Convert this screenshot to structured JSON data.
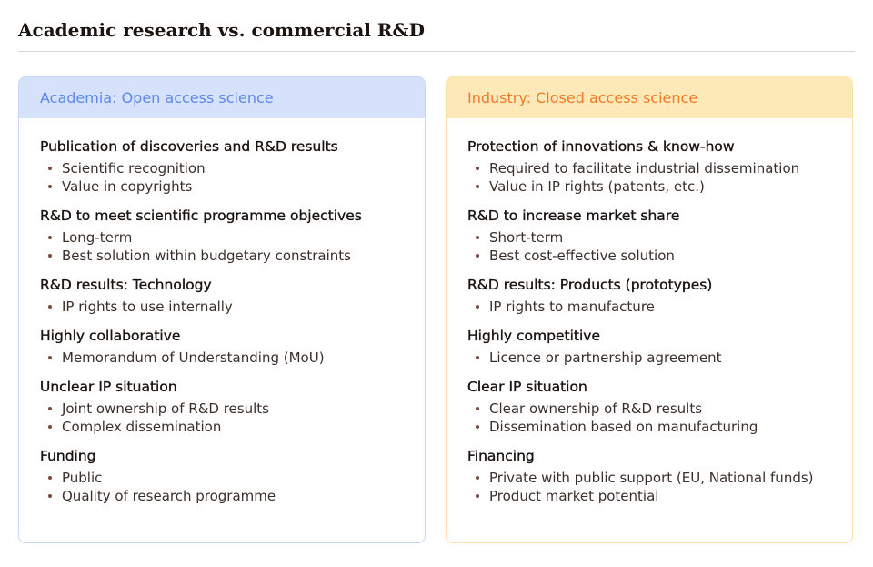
{
  "title": "Academic research vs. commercial R&D",
  "colors": {
    "left_header_bg": "#d6e2fc",
    "left_header_text": "#5d87ea",
    "left_border": "#c6d6f8",
    "right_header_bg": "#fde9b8",
    "right_header_text": "#f2792a",
    "right_border": "#fbe2aa"
  },
  "left": {
    "header": "Academia: Open access science",
    "sections": [
      {
        "title": "Publication of discoveries and R&D results",
        "items": [
          "Scientific recognition",
          "Value in copyrights"
        ]
      },
      {
        "title": "R&D to meet scientific programme objectives",
        "items": [
          "Long-term",
          "Best solution within budgetary constraints"
        ]
      },
      {
        "title": "R&D results: Technology",
        "items": [
          "IP rights to use internally"
        ]
      },
      {
        "title": "Highly collaborative",
        "items": [
          "Memorandum of Understanding (MoU)"
        ]
      },
      {
        "title": "Unclear IP situation",
        "items": [
          "Joint ownership of R&D results",
          "Complex dissemination"
        ]
      },
      {
        "title": "Funding",
        "items": [
          "Public",
          "Quality of research programme"
        ]
      }
    ]
  },
  "right": {
    "header": "Industry: Closed access science",
    "sections": [
      {
        "title": "Protection of innovations & know-how",
        "items": [
          "Required to facilitate industrial dissemination",
          "Value in IP rights (patents, etc.)"
        ]
      },
      {
        "title": "R&D to increase market share",
        "items": [
          "Short-term",
          "Best cost-effective solution"
        ]
      },
      {
        "title": "R&D results: Products (prototypes)",
        "items": [
          "IP rights to manufacture"
        ]
      },
      {
        "title": "Highly competitive",
        "items": [
          "Licence or partnership agreement"
        ]
      },
      {
        "title": "Clear IP situation",
        "items": [
          "Clear ownership of R&D results",
          "Dissemination based on manufacturing"
        ]
      },
      {
        "title": "Financing",
        "items": [
          "Private with public support (EU, National funds)",
          "Product market potential"
        ]
      }
    ]
  }
}
